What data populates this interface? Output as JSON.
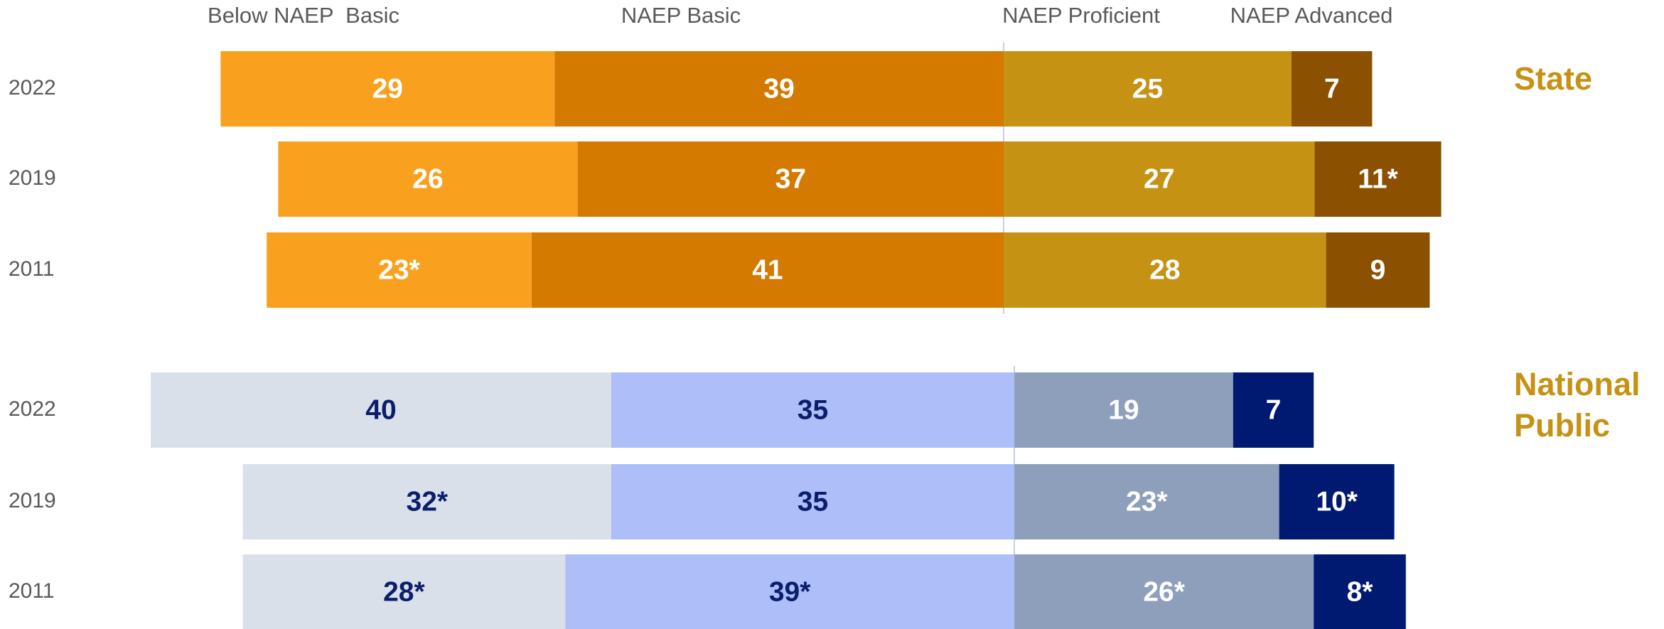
{
  "chart_data": [
    {
      "type": "bar",
      "title": "State",
      "categories": [
        "2022",
        "2019",
        "2011"
      ],
      "series": [
        {
          "name": "Below NAEP  Basic",
          "color": "#F9A11E",
          "label_color": "#FFFFFF",
          "values": [
            29,
            26,
            23
          ],
          "value_labels": [
            "29",
            "26",
            "23*"
          ]
        },
        {
          "name": "NAEP Basic",
          "color": "#D47A00",
          "label_color": "#FFFFFF",
          "values": [
            39,
            37,
            41
          ],
          "value_labels": [
            "39",
            "37",
            "41"
          ]
        },
        {
          "name": "NAEP Proficient",
          "color": "#C69214",
          "label_color": "#FFFFFF",
          "values": [
            25,
            27,
            28
          ],
          "value_labels": [
            "25",
            "27",
            "28"
          ]
        },
        {
          "name": "NAEP Advanced",
          "color": "#8B5000",
          "label_color": "#FFFFFF",
          "values": [
            7,
            11,
            9
          ],
          "value_labels": [
            "7",
            "11*",
            "9"
          ]
        }
      ]
    },
    {
      "type": "bar",
      "title": "National Public",
      "categories": [
        "2022",
        "2019",
        "2011"
      ],
      "series": [
        {
          "color": "#DAE0EA",
          "label_color": "#0B1E6B",
          "values": [
            40,
            32,
            28
          ],
          "value_labels": [
            "40",
            "32*",
            "28*"
          ]
        },
        {
          "color": "#AEBEF8",
          "label_color": "#0B1E6B",
          "values": [
            35,
            35,
            39
          ],
          "value_labels": [
            "35",
            "35",
            "39*"
          ]
        },
        {
          "color": "#8E9FBC",
          "label_color": "#FFFFFF",
          "values": [
            19,
            23,
            26
          ],
          "value_labels": [
            "19",
            "23*",
            "26*"
          ]
        },
        {
          "color": "#001A72",
          "label_color": "#FFFFFF",
          "values": [
            7,
            10,
            8
          ],
          "value_labels": [
            "7",
            "10*",
            "8*"
          ]
        }
      ]
    }
  ]
}
